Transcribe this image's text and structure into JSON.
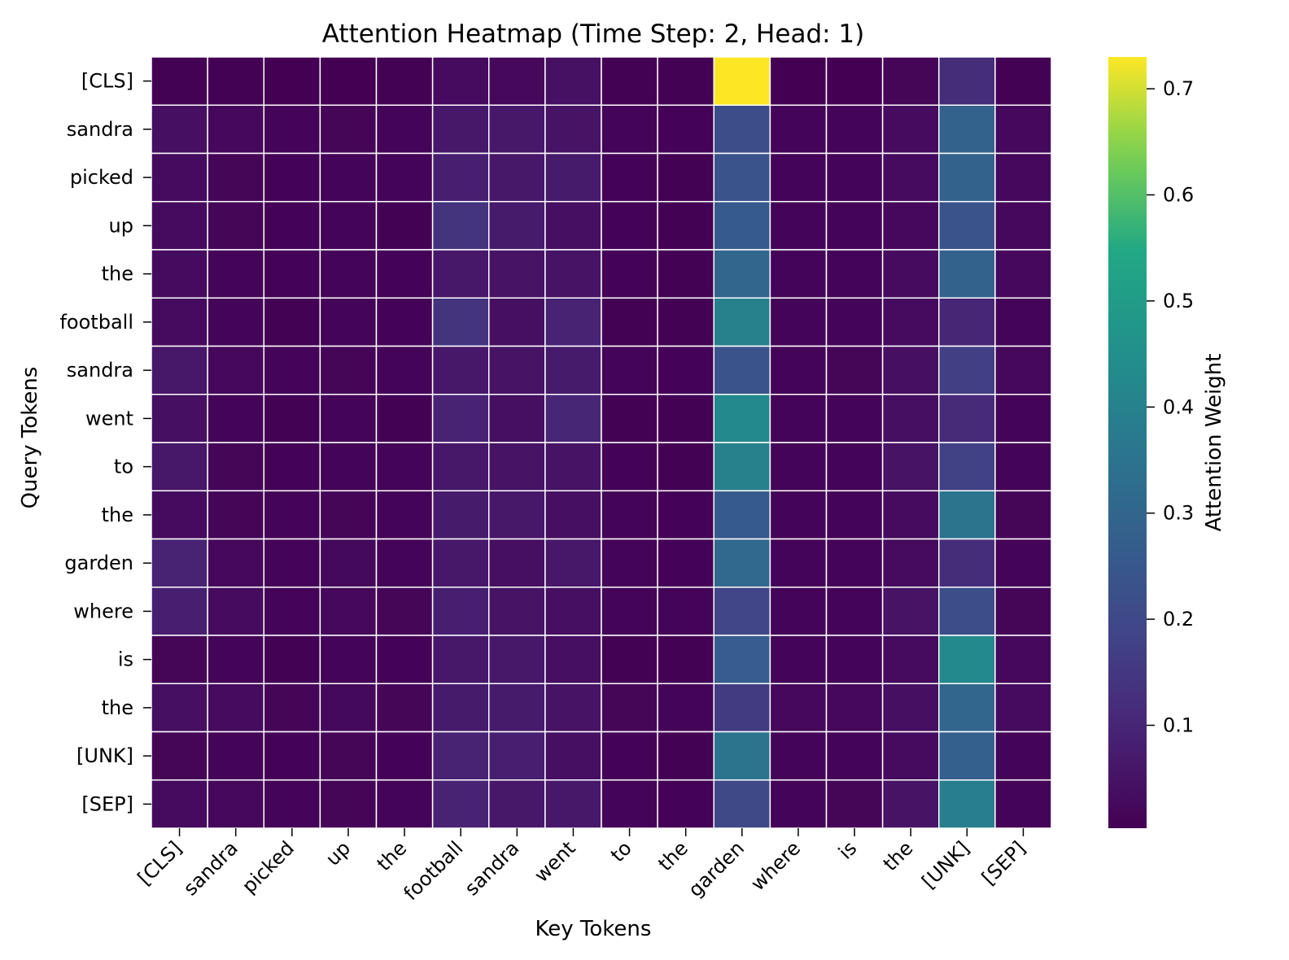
{
  "chart_data": {
    "type": "heatmap",
    "title": "Attention Heatmap (Time Step: 2, Head: 1)",
    "xlabel": "Key Tokens",
    "ylabel": "Query Tokens",
    "x_categories": [
      "[CLS]",
      "sandra",
      "picked",
      "up",
      "the",
      "football",
      "sandra",
      "went",
      "to",
      "the",
      "garden",
      "where",
      "is",
      "the",
      "[UNK]",
      "[SEP]"
    ],
    "y_categories": [
      "[CLS]",
      "sandra",
      "picked",
      "up",
      "the",
      "football",
      "sandra",
      "went",
      "to",
      "the",
      "garden",
      "where",
      "is",
      "the",
      "[UNK]",
      "[SEP]"
    ],
    "values": [
      [
        0.005,
        0.006,
        0.004,
        0.003,
        0.005,
        0.03,
        0.02,
        0.045,
        0.005,
        0.006,
        0.73,
        0.004,
        0.004,
        0.015,
        0.12,
        0.006
      ],
      [
        0.04,
        0.02,
        0.01,
        0.015,
        0.01,
        0.06,
        0.06,
        0.05,
        0.01,
        0.008,
        0.22,
        0.01,
        0.01,
        0.03,
        0.29,
        0.02
      ],
      [
        0.03,
        0.015,
        0.008,
        0.012,
        0.01,
        0.08,
        0.06,
        0.07,
        0.008,
        0.006,
        0.24,
        0.01,
        0.01,
        0.03,
        0.29,
        0.02
      ],
      [
        0.03,
        0.015,
        0.008,
        0.012,
        0.005,
        0.14,
        0.07,
        0.04,
        0.008,
        0.006,
        0.26,
        0.01,
        0.01,
        0.02,
        0.24,
        0.02
      ],
      [
        0.03,
        0.012,
        0.008,
        0.012,
        0.008,
        0.06,
        0.05,
        0.05,
        0.008,
        0.006,
        0.3,
        0.012,
        0.01,
        0.03,
        0.29,
        0.02
      ],
      [
        0.03,
        0.012,
        0.006,
        0.012,
        0.008,
        0.14,
        0.04,
        0.09,
        0.006,
        0.005,
        0.4,
        0.01,
        0.01,
        0.03,
        0.1,
        0.01
      ],
      [
        0.06,
        0.02,
        0.012,
        0.015,
        0.01,
        0.06,
        0.05,
        0.07,
        0.01,
        0.008,
        0.24,
        0.012,
        0.015,
        0.04,
        0.17,
        0.02
      ],
      [
        0.04,
        0.012,
        0.006,
        0.012,
        0.006,
        0.09,
        0.04,
        0.1,
        0.006,
        0.006,
        0.43,
        0.01,
        0.01,
        0.04,
        0.11,
        0.01
      ],
      [
        0.06,
        0.015,
        0.008,
        0.012,
        0.01,
        0.06,
        0.05,
        0.05,
        0.008,
        0.006,
        0.4,
        0.01,
        0.01,
        0.05,
        0.18,
        0.01
      ],
      [
        0.03,
        0.015,
        0.01,
        0.015,
        0.01,
        0.07,
        0.06,
        0.04,
        0.01,
        0.008,
        0.26,
        0.012,
        0.012,
        0.03,
        0.35,
        0.015
      ],
      [
        0.09,
        0.02,
        0.012,
        0.025,
        0.01,
        0.06,
        0.04,
        0.06,
        0.01,
        0.008,
        0.31,
        0.012,
        0.012,
        0.03,
        0.12,
        0.012
      ],
      [
        0.08,
        0.03,
        0.01,
        0.02,
        0.015,
        0.08,
        0.05,
        0.04,
        0.01,
        0.01,
        0.19,
        0.012,
        0.012,
        0.05,
        0.22,
        0.015
      ],
      [
        0.015,
        0.01,
        0.006,
        0.01,
        0.008,
        0.06,
        0.06,
        0.04,
        0.006,
        0.006,
        0.27,
        0.01,
        0.01,
        0.03,
        0.43,
        0.02
      ],
      [
        0.04,
        0.03,
        0.015,
        0.025,
        0.015,
        0.07,
        0.07,
        0.05,
        0.015,
        0.012,
        0.16,
        0.02,
        0.02,
        0.04,
        0.3,
        0.03
      ],
      [
        0.015,
        0.012,
        0.008,
        0.015,
        0.008,
        0.09,
        0.08,
        0.04,
        0.008,
        0.006,
        0.35,
        0.01,
        0.01,
        0.03,
        0.28,
        0.012
      ],
      [
        0.03,
        0.02,
        0.01,
        0.015,
        0.01,
        0.09,
        0.06,
        0.06,
        0.01,
        0.008,
        0.2,
        0.012,
        0.015,
        0.05,
        0.39,
        0.012
      ]
    ],
    "colorbar": {
      "label": "Attention Weight",
      "colormap": "viridis",
      "vmin": 0.003,
      "vmax": 0.73,
      "ticks": [
        0.1,
        0.2,
        0.3,
        0.4,
        0.5,
        0.6,
        0.7
      ],
      "tick_labels": [
        "0.1",
        "0.2",
        "0.3",
        "0.4",
        "0.5",
        "0.6",
        "0.7"
      ]
    },
    "gridlines": "white"
  }
}
